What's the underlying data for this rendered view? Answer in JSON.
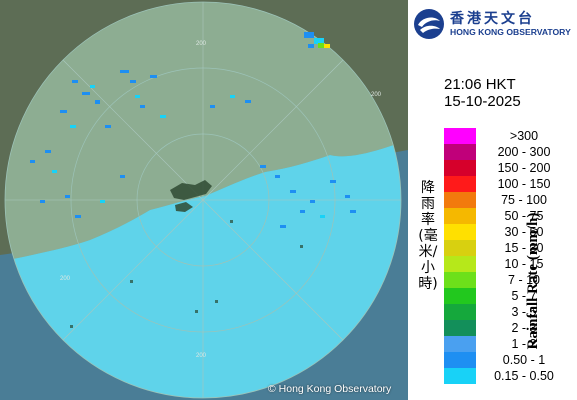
{
  "logo": {
    "name_cn": "香港天文台",
    "name_en": "HONG KONG OBSERVATORY"
  },
  "timestamp": {
    "time": "21:06 HKT",
    "date": "15-10-2025"
  },
  "legend": {
    "title_en": "Rainfall Rate (mm/h)",
    "title_cn": "降雨率(毫米/小時)",
    "items": [
      {
        "label": ">300",
        "color": "#ff00ff"
      },
      {
        "label": "200 - 300",
        "color": "#c0007a"
      },
      {
        "label": "150 - 200",
        "color": "#d6002b"
      },
      {
        "label": "100 - 150",
        "color": "#ff1a1a"
      },
      {
        "label": "75 - 100",
        "color": "#f27a0d"
      },
      {
        "label": "50 - 75",
        "color": "#f5b800"
      },
      {
        "label": "30 - 50",
        "color": "#ffe000"
      },
      {
        "label": "15 - 30",
        "color": "#d8d010"
      },
      {
        "label": "10 - 15",
        "color": "#b6e81a"
      },
      {
        "label": "7 - 10",
        "color": "#6de01a"
      },
      {
        "label": "5 - 7",
        "color": "#22c81e"
      },
      {
        "label": "3 - 5",
        "color": "#15a83c"
      },
      {
        "label": "2 - 3",
        "color": "#138f5a"
      },
      {
        "label": "1 - 2",
        "color": "#4aa0f0"
      },
      {
        "label": "0.50 - 1",
        "color": "#1e8ff2"
      },
      {
        "label": "0.15 - 0.50",
        "color": "#18d2f7"
      }
    ]
  },
  "map": {
    "range_rings": [
      "200",
      "200",
      "200",
      "200"
    ]
  },
  "copyright": "© Hong Kong Observatory"
}
